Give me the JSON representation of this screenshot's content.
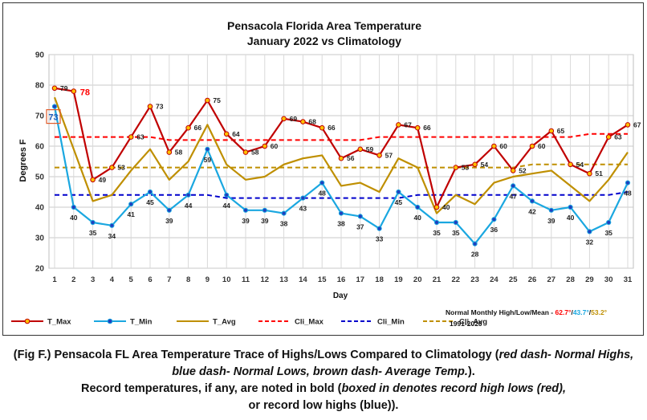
{
  "chart_data": {
    "type": "line",
    "title": "Pensacola Florida Area Temperature",
    "subtitle": "January 2022 vs Climatology",
    "xlabel": "Day",
    "ylabel": "Degrees F",
    "ylim": [
      20,
      90
    ],
    "yticks": [
      20,
      30,
      40,
      50,
      60,
      70,
      80,
      90
    ],
    "x": [
      1,
      2,
      3,
      4,
      5,
      6,
      7,
      8,
      9,
      10,
      11,
      12,
      13,
      14,
      15,
      16,
      17,
      18,
      19,
      20,
      21,
      22,
      23,
      24,
      25,
      26,
      27,
      28,
      29,
      30,
      31
    ],
    "grid": true,
    "legend_position": "bottom",
    "series": [
      {
        "name": "T_Max",
        "color": "#c00000",
        "marker": "dot",
        "dash": false,
        "values": [
          79,
          78,
          49,
          53,
          63,
          73,
          58,
          66,
          75,
          64,
          58,
          60,
          69,
          68,
          66,
          56,
          59,
          57,
          67,
          66,
          40,
          53,
          54,
          60,
          52,
          60,
          65,
          54,
          51,
          63,
          67
        ]
      },
      {
        "name": "T_Min",
        "color": "#1aa7e0",
        "marker": "dot",
        "dash": false,
        "values": [
          73,
          40,
          35,
          34,
          41,
          45,
          39,
          44,
          59,
          44,
          39,
          39,
          38,
          43,
          48,
          38,
          37,
          33,
          45,
          40,
          35,
          35,
          28,
          36,
          47,
          42,
          39,
          40,
          32,
          35,
          48
        ]
      },
      {
        "name": "T_Avg",
        "color": "#bf8f00",
        "marker": "none",
        "dash": false,
        "values": [
          76,
          59,
          42,
          44,
          52,
          59,
          49,
          55,
          67,
          54,
          49,
          50,
          54,
          56,
          57,
          47,
          48,
          45,
          56,
          53,
          38,
          44,
          41,
          48,
          50,
          51,
          52,
          47,
          42,
          49,
          58
        ]
      },
      {
        "name": "Cli_Max",
        "color": "#ff0000",
        "marker": "none",
        "dash": true,
        "values": [
          63,
          63,
          63,
          63,
          63,
          63,
          62,
          62,
          62,
          62,
          62,
          62,
          62,
          62,
          62,
          62,
          62,
          63,
          63,
          63,
          63,
          63,
          63,
          63,
          63,
          63,
          63,
          63,
          64,
          64,
          64
        ]
      },
      {
        "name": "Cli_Min",
        "color": "#0000cc",
        "marker": "none",
        "dash": true,
        "values": [
          44,
          44,
          44,
          44,
          44,
          44,
          44,
          44,
          44,
          43,
          43,
          43,
          43,
          43,
          43,
          43,
          43,
          43,
          43,
          44,
          44,
          44,
          44,
          44,
          44,
          44,
          44,
          44,
          44,
          44,
          45
        ]
      },
      {
        "name": "Cli_Avg",
        "color": "#bf8f00",
        "marker": "none",
        "dash": true,
        "values": [
          53,
          53,
          53,
          53,
          53,
          53,
          53,
          53,
          53,
          53,
          53,
          53,
          53,
          53,
          53,
          53,
          53,
          53,
          53,
          53,
          53,
          53,
          53,
          53,
          53,
          54,
          54,
          54,
          54,
          54,
          54
        ]
      }
    ],
    "data_labels": {
      "T_Max": [
        "79",
        "78",
        "49",
        "53",
        "63",
        "73",
        "58",
        "66",
        "75",
        "64",
        "58",
        "60",
        "69",
        "68",
        "66",
        "56",
        "59",
        "57",
        "67",
        "66",
        "40",
        "53",
        "54",
        "60",
        "52",
        "60",
        "65",
        "54",
        "51",
        "63",
        "67"
      ],
      "T_Min": [
        "73",
        "40",
        "35",
        "34",
        "41",
        "45",
        "39",
        "44",
        "59",
        "44",
        "39",
        "39",
        "38",
        "43",
        "48",
        "38",
        "37",
        "33",
        "45",
        "40",
        "35",
        "35",
        "28",
        "36",
        "47",
        "42",
        "39",
        "40",
        "32",
        "35",
        "48"
      ]
    },
    "record_annotations": [
      {
        "day": 2,
        "series": "T_Max",
        "text": "78",
        "color": "#ff0000",
        "boxed": false
      },
      {
        "day": 1,
        "series": "T_Min",
        "text": "73",
        "color": "#1f5fbf",
        "boxed": true
      }
    ],
    "normals_note": {
      "prefix": "Normal Monthly High/Low/Mean - ",
      "high": "62.7°",
      "low": "43.7°",
      "mean": "53.2°",
      "sep": "/",
      "period": "1991-2020",
      "high_color": "#ff0000",
      "low_color": "#1aa7e0",
      "mean_color": "#bf8f00"
    }
  },
  "caption": {
    "line1_a": "(Fig F.) Pensacola FL Area Temperature Trace of Highs/Lows Compared to Climatology (",
    "line1_italic": "red dash- Normal Highs, blue dash- Normal Lows, brown dash- Average Temp.",
    "line1_b": ").",
    "line2_a": "Record temperatures, if any, are noted in bold (",
    "line2_italic": "boxed in denotes record high lows (red),",
    "line3": "or record low highs (blue))."
  }
}
